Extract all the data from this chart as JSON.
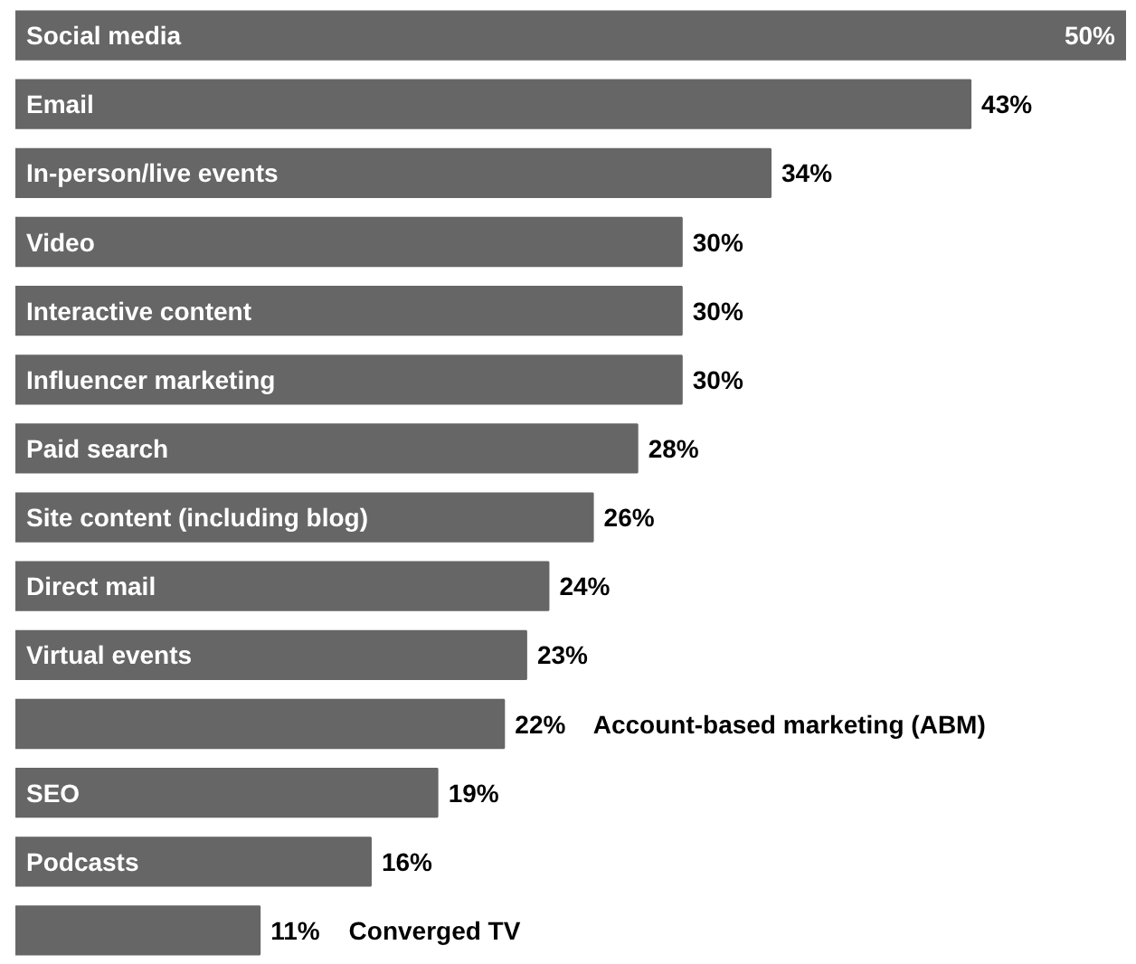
{
  "chart_data": {
    "type": "bar",
    "orientation": "horizontal",
    "color": "#666666",
    "categories": [
      "Social media",
      "Email",
      "In-person/live events",
      "Video",
      "Interactive content",
      "Influencer marketing",
      "Paid search",
      "Site content (including blog)",
      "Direct mail",
      "Virtual events",
      "Account-based marketing (ABM)",
      "SEO",
      "Podcasts",
      "Converged TV"
    ],
    "values": [
      50,
      43,
      34,
      30,
      30,
      30,
      28,
      26,
      24,
      23,
      22,
      19,
      16,
      11
    ],
    "value_labels": [
      "50%",
      "43%",
      "34%",
      "30%",
      "30%",
      "30%",
      "28%",
      "26%",
      "24%",
      "23%",
      "22%",
      "19%",
      "16%",
      "11%"
    ]
  }
}
